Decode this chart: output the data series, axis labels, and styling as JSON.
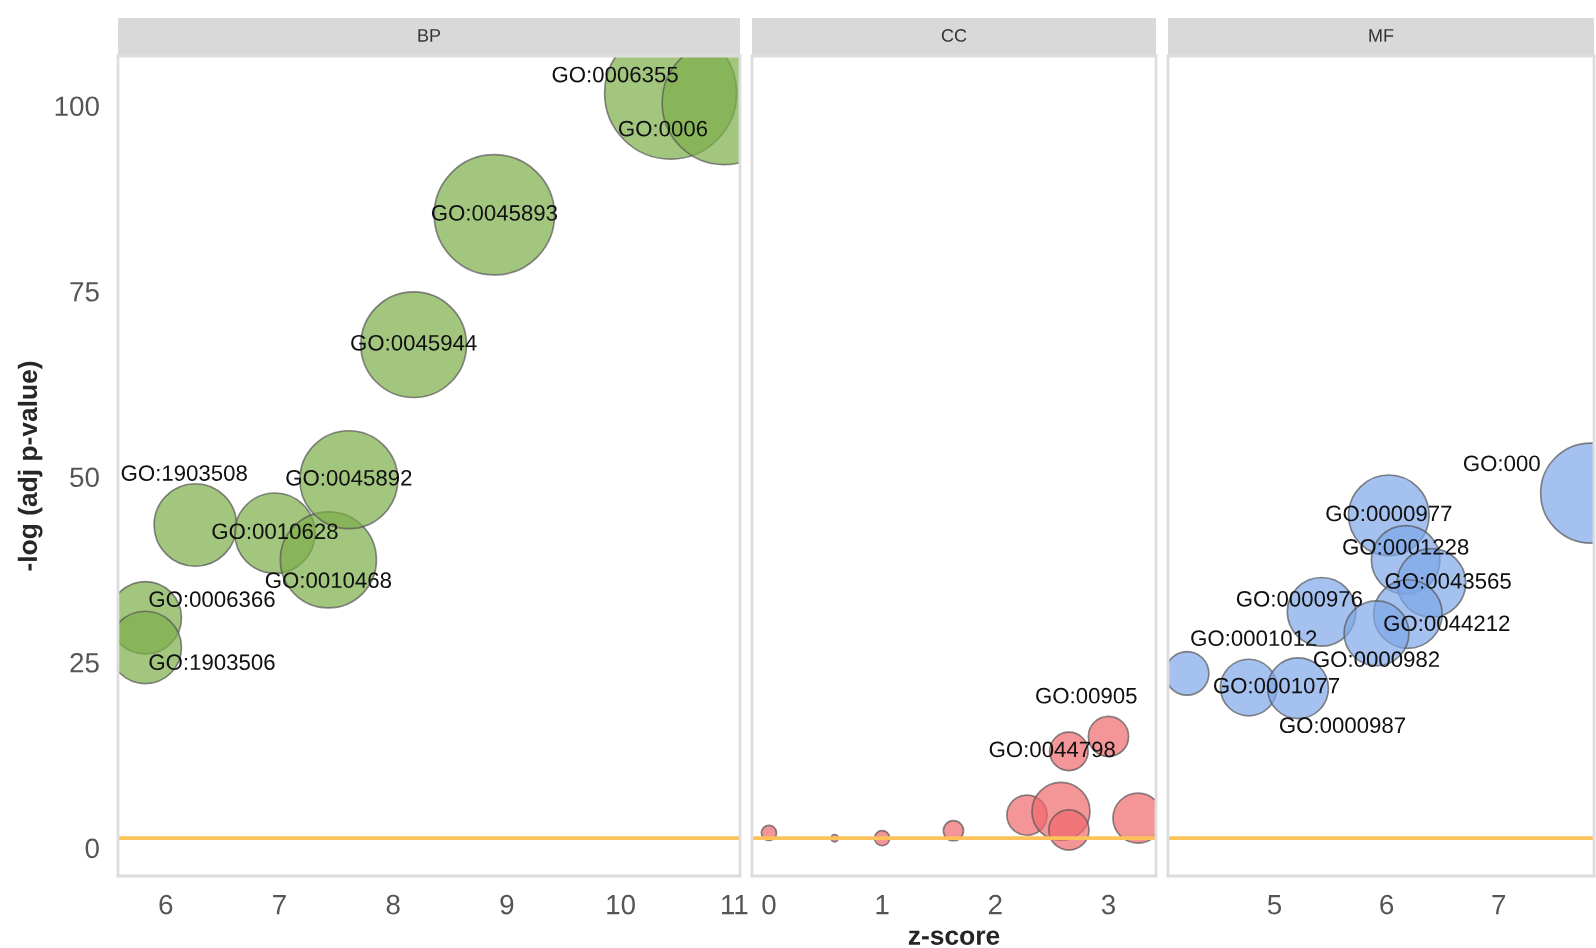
{
  "chart_data": [
    {
      "type": "bubble",
      "title": "BP",
      "ylabel": "-log (adj p-value)",
      "marker": "circle",
      "grid": false,
      "legend": false,
      "x": [
        5.82,
        5.82,
        6.26,
        6.96,
        7.43,
        7.61,
        8.18,
        8.89,
        10.44,
        10.91
      ],
      "series": [
        {
          "color": "#7cae48",
          "values": [
            31,
            27,
            43.5,
            42.4,
            38.8,
            49.6,
            67.8,
            85.3,
            101.7,
            100.4
          ],
          "sizes": [
            0.3,
            0.3,
            0.39,
            0.37,
            0.53,
            0.55,
            0.64,
            0.83,
            1,
            0.88
          ]
        }
      ],
      "xlim": [
        5.58,
        11.05
      ],
      "xticks": [
        6,
        7,
        8,
        9,
        10,
        11
      ],
      "ylim": [
        -3.8,
        106.7
      ],
      "yticks": [
        0,
        25,
        50,
        75,
        100
      ],
      "ref_lines": [
        {
          "axis": "y",
          "value": 1.3,
          "color": "#fdc25a"
        }
      ],
      "annotations": [
        {
          "text": "GO:0006366",
          "x": 5.82,
          "y": 31
        },
        {
          "text": "GO:1903506",
          "x": 5.82,
          "y": 27
        },
        {
          "text": "GO:1903508",
          "x": 6.26,
          "y": 43.5
        },
        {
          "text": "GO:0010628",
          "x": 6.96,
          "y": 42.4
        },
        {
          "text": "GO:0010468",
          "x": 7.43,
          "y": 38.8
        },
        {
          "text": "GO:0045892",
          "x": 7.61,
          "y": 49.6
        },
        {
          "text": "GO:0045944",
          "x": 8.18,
          "y": 67.8
        },
        {
          "text": "GO:0045893",
          "x": 8.89,
          "y": 85.3
        },
        {
          "text": "GO:0006355",
          "x": 10.44,
          "y": 101.7
        },
        {
          "text": "GO:0006",
          "x": 10.91,
          "y": 100.4
        }
      ]
    },
    {
      "type": "bubble",
      "title": "CC",
      "xlabel": "z-score",
      "marker": "circle",
      "grid": false,
      "legend": false,
      "tick_labels": "x",
      "x": [
        0.0,
        0.58,
        1.0,
        1.63,
        2.28,
        2.58,
        2.65,
        3.26,
        2.65,
        3.0
      ],
      "series": [
        {
          "color": "#f0686c",
          "values": [
            2.0,
            1.3,
            1.3,
            2.3,
            4.4,
            4.9,
            2.4,
            4.0,
            13.0,
            15.0
          ],
          "sizes": [
            0.068,
            0.016,
            0.068,
            0.12,
            0.48,
            1,
            0.48,
            0.74,
            0.44,
            0.48
          ]
        }
      ],
      "xlim": [
        -0.15,
        3.42
      ],
      "xticks": [
        0,
        1,
        2,
        3
      ],
      "ylim": [
        -3.8,
        106.7
      ],
      "ref_lines": [
        {
          "axis": "y",
          "value": 1.3,
          "color": "#fdc25a"
        }
      ],
      "annotations": [
        {
          "text": "GO:0044798",
          "x": 2.65,
          "y": 13.0
        },
        {
          "text": "GO:00905",
          "x": 3.0,
          "y": 15.0
        }
      ]
    },
    {
      "type": "bubble",
      "title": "MF",
      "marker": "circle",
      "grid": false,
      "legend": false,
      "tick_labels": "x",
      "x": [
        4.22,
        4.77,
        5.21,
        6.02,
        6.17,
        6.4,
        6.19,
        5.42,
        5.91,
        7.82
      ],
      "series": [
        {
          "color": "#7ea6e8",
          "values": [
            23.5,
            21.6,
            21.5,
            44.8,
            38.8,
            35.7,
            31.5,
            31.8,
            28.9,
            47.8
          ],
          "sizes": [
            0.19,
            0.32,
            0.37,
            0.65,
            0.47,
            0.47,
            0.47,
            0.47,
            0.42,
            1
          ]
        }
      ],
      "xlim": [
        4.05,
        7.85
      ],
      "xticks": [
        5,
        6,
        7
      ],
      "ylim": [
        -3.8,
        106.7
      ],
      "ref_lines": [
        {
          "axis": "y",
          "value": 1.3,
          "color": "#fdc25a"
        }
      ],
      "annotations": [
        {
          "text": "GO:0001012",
          "x": 4.22,
          "y": 23.5
        },
        {
          "text": "GO:0001077",
          "x": 4.77,
          "y": 21.6
        },
        {
          "text": "GO:0000987",
          "x": 5.21,
          "y": 21.5
        },
        {
          "text": "GO:0000977",
          "x": 6.02,
          "y": 44.8
        },
        {
          "text": "GO:0001228",
          "x": 6.17,
          "y": 38.8
        },
        {
          "text": "GO:0043565",
          "x": 6.4,
          "y": 35.7
        },
        {
          "text": "GO:0044212",
          "x": 6.19,
          "y": 31.5
        },
        {
          "text": "GO:0000976",
          "x": 5.42,
          "y": 31.8
        },
        {
          "text": "GO:0000982",
          "x": 5.91,
          "y": 28.9
        },
        {
          "text": "GO:000",
          "x": 7.82,
          "y": 47.8
        }
      ]
    }
  ]
}
